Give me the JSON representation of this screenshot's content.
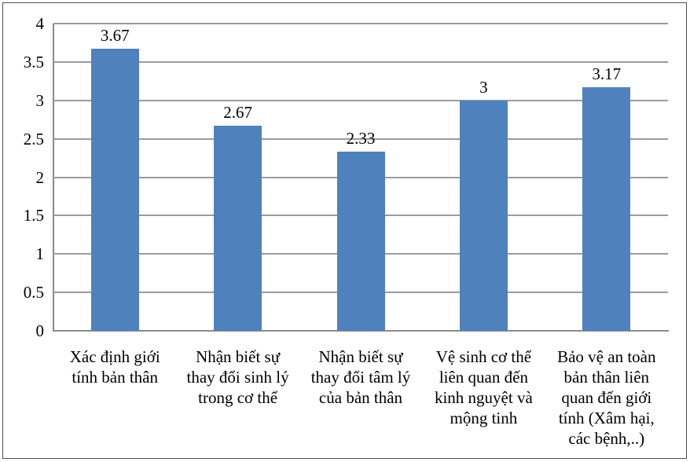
{
  "chart_data": {
    "type": "bar",
    "title": "",
    "xlabel": "",
    "ylabel": "",
    "categories": [
      "Xác định giới\ntính bản thân",
      "Nhận biết sự\nthay đổi sinh lý\ntrong cơ thể",
      "Nhận biết sự\nthay đổi tâm lý\ncủa bản thân",
      "Vệ sinh cơ thể\nliên quan đến\nkinh nguyệt và\nmộng tinh",
      "Bảo vệ an toàn\nbản thân liên\nquan đến giới\ntính (Xâm hại,\ncác bệnh,..)"
    ],
    "values": [
      3.67,
      2.67,
      2.33,
      3,
      3.17
    ],
    "value_labels": [
      "3.67",
      "2.67",
      "2.33",
      "3",
      "3.17"
    ],
    "ylim": [
      0,
      4
    ],
    "ytick_step": 0.5,
    "yticks": [
      "0",
      "0.5",
      "1",
      "1.5",
      "2",
      "2.5",
      "3",
      "3.5",
      "4"
    ],
    "grid": true,
    "legend": false,
    "colors": {
      "bar": "#4f81bd",
      "gridline": "#9b9b9b",
      "axis": "#8a8a8a",
      "frame_border": "#4d4d4d",
      "text": "#000000",
      "background": "#ffffff"
    }
  }
}
